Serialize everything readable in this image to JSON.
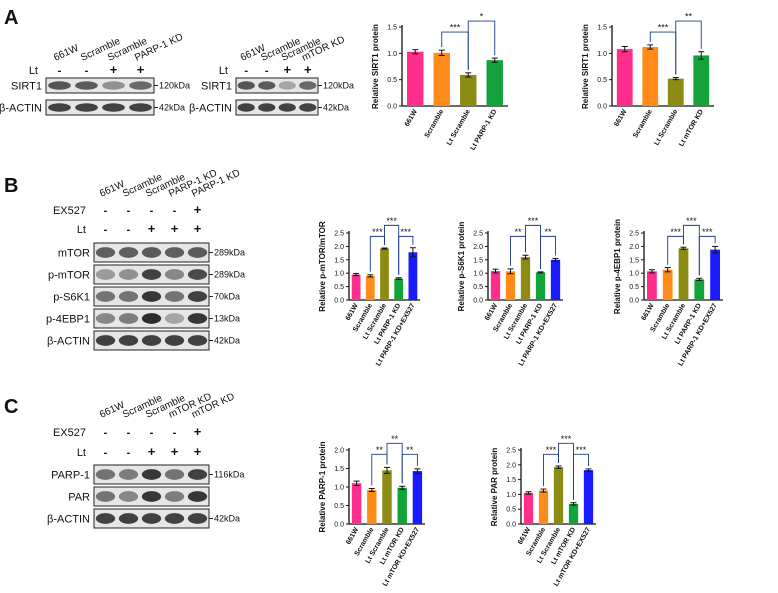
{
  "panel_letters": [
    "A",
    "B",
    "C"
  ],
  "blots": [
    {
      "name": "A1",
      "lanes": [
        "661W",
        "Scramble",
        "Scramble",
        "PARP-1 KD"
      ],
      "treatments": [
        {
          "label": "Lt",
          "signs": [
            "-",
            "-",
            "+",
            "+"
          ]
        }
      ],
      "rows": [
        {
          "protein": "SIRT1",
          "kda": "120kDa",
          "intensity": [
            0.75,
            0.72,
            0.45,
            0.65
          ]
        },
        {
          "protein": "β-ACTIN",
          "kda": "42kDa",
          "intensity": [
            0.85,
            0.85,
            0.85,
            0.85
          ]
        }
      ]
    },
    {
      "name": "A2",
      "lanes": [
        "661W",
        "Scramble",
        "Scramble",
        "mTOR KD"
      ],
      "treatments": [
        {
          "label": "Lt",
          "signs": [
            "-",
            "-",
            "+",
            "+"
          ]
        }
      ],
      "rows": [
        {
          "protein": "SIRT1",
          "kda": "120kDa",
          "intensity": [
            0.75,
            0.72,
            0.35,
            0.65
          ]
        },
        {
          "protein": "β-ACTIN",
          "kda": "42kDa",
          "intensity": [
            0.85,
            0.85,
            0.85,
            0.85
          ]
        }
      ]
    },
    {
      "name": "B",
      "lanes": [
        "661W",
        "Scramble",
        "Scramble",
        "PARP-1 KD",
        "PARP-1 KD"
      ],
      "treatments": [
        {
          "label": "EX527",
          "signs": [
            "-",
            "-",
            "-",
            "-",
            "+"
          ]
        },
        {
          "label": "Lt",
          "signs": [
            "-",
            "-",
            "+",
            "+",
            "+"
          ]
        }
      ],
      "rows": [
        {
          "protein": "mTOR",
          "kda": "289kDa",
          "intensity": [
            0.7,
            0.7,
            0.72,
            0.7,
            0.72
          ]
        },
        {
          "protein": "p-mTOR",
          "kda": "289kDa",
          "intensity": [
            0.4,
            0.45,
            0.85,
            0.5,
            0.8
          ]
        },
        {
          "protein": "p-S6K1",
          "kda": "70kDa",
          "intensity": [
            0.6,
            0.6,
            0.9,
            0.6,
            0.85
          ]
        },
        {
          "protein": "p-4EBP1",
          "kda": "13kDa",
          "intensity": [
            0.5,
            0.55,
            0.95,
            0.35,
            0.9
          ]
        },
        {
          "protein": "β-ACTIN",
          "kda": "42kDa",
          "intensity": [
            0.85,
            0.85,
            0.85,
            0.85,
            0.85
          ]
        }
      ]
    },
    {
      "name": "C",
      "lanes": [
        "661W",
        "Scramble",
        "Scramble",
        "mTOR KD",
        "mTOR KD"
      ],
      "treatments": [
        {
          "label": "EX527",
          "signs": [
            "-",
            "-",
            "-",
            "-",
            "+"
          ]
        },
        {
          "label": "Lt",
          "signs": [
            "-",
            "-",
            "+",
            "+",
            "+"
          ]
        }
      ],
      "rows": [
        {
          "protein": "PARP-1",
          "kda": "116kDa",
          "intensity": [
            0.6,
            0.55,
            0.9,
            0.6,
            0.85
          ]
        },
        {
          "protein": "PAR",
          "kda": "",
          "intensity": [
            0.6,
            0.5,
            0.9,
            0.55,
            0.9
          ]
        },
        {
          "protein": "β-ACTIN",
          "kda": "42kDa",
          "intensity": [
            0.85,
            0.85,
            0.85,
            0.85,
            0.85
          ]
        }
      ]
    }
  ],
  "colors": {
    "661W": "#ff2d8c",
    "Scramble": "#ff8c1a",
    "Lt Scramble": "#8c8c14",
    "KD": "#12a33a",
    "KD+EX527": "#1a1aff"
  },
  "chart_data": [
    {
      "type": "bar",
      "panel": "A",
      "ylabel": "Relative SIRT1 protein",
      "ylim": [
        0,
        1.5
      ],
      "yticks": [
        0.0,
        0.5,
        1.0,
        1.5
      ],
      "categories": [
        "661W",
        "Scramble",
        "Lt Scramble",
        "Lt PARP-1 KD"
      ],
      "values": [
        1.03,
        1.01,
        0.59,
        0.87
      ],
      "errors": [
        0.04,
        0.05,
        0.04,
        0.04
      ],
      "colors": [
        "#ff2d8c",
        "#ff8c1a",
        "#8c8c14",
        "#12a33a"
      ],
      "significance": [
        {
          "from": 1,
          "to": 2,
          "label": "***"
        },
        {
          "from": 2,
          "to": 3,
          "label": "*"
        }
      ]
    },
    {
      "type": "bar",
      "panel": "A",
      "ylabel": "Relative SIRT1 protein",
      "ylim": [
        0,
        1.5
      ],
      "yticks": [
        0.0,
        0.5,
        1.0,
        1.5
      ],
      "categories": [
        "661W",
        "Scramble",
        "Lt Scramble",
        "Lt mTOR KD"
      ],
      "values": [
        1.08,
        1.12,
        0.52,
        0.96
      ],
      "errors": [
        0.05,
        0.04,
        0.02,
        0.07
      ],
      "colors": [
        "#ff2d8c",
        "#ff8c1a",
        "#8c8c14",
        "#12a33a"
      ],
      "significance": [
        {
          "from": 1,
          "to": 2,
          "label": "***"
        },
        {
          "from": 2,
          "to": 3,
          "label": "**"
        }
      ]
    },
    {
      "type": "bar",
      "panel": "B",
      "ylabel": "Relative p-mTOR/mTOR",
      "ylim": [
        0,
        2.5
      ],
      "yticks": [
        0.0,
        0.5,
        1.0,
        1.5,
        2.0,
        2.5
      ],
      "categories": [
        "661W",
        "Scramble",
        "Lt Scramble",
        "Lt PARP-1 KD",
        "Lt PARP-1 KD+EX527"
      ],
      "values": [
        0.95,
        0.9,
        1.92,
        0.8,
        1.78
      ],
      "errors": [
        0.04,
        0.04,
        0.02,
        0.03,
        0.17
      ],
      "colors": [
        "#ff2d8c",
        "#ff8c1a",
        "#8c8c14",
        "#12a33a",
        "#1a1aff"
      ],
      "significance": [
        {
          "from": 1,
          "to": 2,
          "label": "***"
        },
        {
          "from": 2,
          "to": 3,
          "label": "***"
        },
        {
          "from": 3,
          "to": 4,
          "label": "***"
        }
      ]
    },
    {
      "type": "bar",
      "panel": "B",
      "ylabel": "Relative p-S6K1 protein",
      "ylim": [
        0,
        2.5
      ],
      "yticks": [
        0.0,
        0.5,
        1.0,
        1.5,
        2.0,
        2.5
      ],
      "categories": [
        "661W",
        "Scramble",
        "Lt Scramble",
        "Lt PARP-1 KD",
        "Lt PARP-1 KD+EX527"
      ],
      "values": [
        1.08,
        1.07,
        1.6,
        1.03,
        1.5
      ],
      "errors": [
        0.07,
        0.09,
        0.07,
        0.02,
        0.05
      ],
      "colors": [
        "#ff2d8c",
        "#ff8c1a",
        "#8c8c14",
        "#12a33a",
        "#1a1aff"
      ],
      "significance": [
        {
          "from": 1,
          "to": 2,
          "label": "**"
        },
        {
          "from": 2,
          "to": 3,
          "label": "***"
        },
        {
          "from": 3,
          "to": 4,
          "label": "**"
        }
      ]
    },
    {
      "type": "bar",
      "panel": "B",
      "ylabel": "Relative p-4EBP1 protein",
      "ylim": [
        0,
        2.5
      ],
      "yticks": [
        0.0,
        0.5,
        1.0,
        1.5,
        2.0,
        2.5
      ],
      "categories": [
        "661W",
        "Scramble",
        "Lt Scramble",
        "Lt PARP-1 KD",
        "Lt PARP-1 KD+EX527"
      ],
      "values": [
        1.07,
        1.13,
        1.93,
        0.77,
        1.88
      ],
      "errors": [
        0.06,
        0.08,
        0.04,
        0.04,
        0.12
      ],
      "colors": [
        "#ff2d8c",
        "#ff8c1a",
        "#8c8c14",
        "#12a33a",
        "#1a1aff"
      ],
      "significance": [
        {
          "from": 1,
          "to": 2,
          "label": "***"
        },
        {
          "from": 2,
          "to": 3,
          "label": "***"
        },
        {
          "from": 3,
          "to": 4,
          "label": "***"
        }
      ]
    },
    {
      "type": "bar",
      "panel": "C",
      "ylabel": "Relative PARP-1 protein",
      "ylim": [
        0,
        2.0
      ],
      "yticks": [
        0.0,
        0.5,
        1.0,
        1.5,
        2.0
      ],
      "categories": [
        "661W",
        "Scramble",
        "Lt Scramble",
        "Lt mTOR KD",
        "Lt mTOR KD+EX527"
      ],
      "values": [
        1.1,
        0.92,
        1.45,
        0.98,
        1.43
      ],
      "errors": [
        0.06,
        0.04,
        0.08,
        0.04,
        0.06
      ],
      "colors": [
        "#ff2d8c",
        "#ff8c1a",
        "#8c8c14",
        "#12a33a",
        "#1a1aff"
      ],
      "significance": [
        {
          "from": 1,
          "to": 2,
          "label": "**"
        },
        {
          "from": 2,
          "to": 3,
          "label": "**"
        },
        {
          "from": 3,
          "to": 4,
          "label": "**"
        }
      ]
    },
    {
      "type": "bar",
      "panel": "C",
      "ylabel": "Relative PAR protein",
      "ylim": [
        0,
        2.5
      ],
      "yticks": [
        0.0,
        0.5,
        1.0,
        1.5,
        2.0,
        2.5
      ],
      "categories": [
        "661W",
        "Scramble",
        "Lt Scramble",
        "Lt mTOR KD",
        "Lt mTOR KD+EX527"
      ],
      "values": [
        1.05,
        1.13,
        1.92,
        0.68,
        1.82
      ],
      "errors": [
        0.04,
        0.05,
        0.04,
        0.04,
        0.04
      ],
      "colors": [
        "#ff2d8c",
        "#ff8c1a",
        "#8c8c14",
        "#12a33a",
        "#1a1aff"
      ],
      "significance": [
        {
          "from": 1,
          "to": 2,
          "label": "***"
        },
        {
          "from": 2,
          "to": 3,
          "label": "***"
        },
        {
          "from": 3,
          "to": 4,
          "label": "***"
        }
      ]
    }
  ]
}
